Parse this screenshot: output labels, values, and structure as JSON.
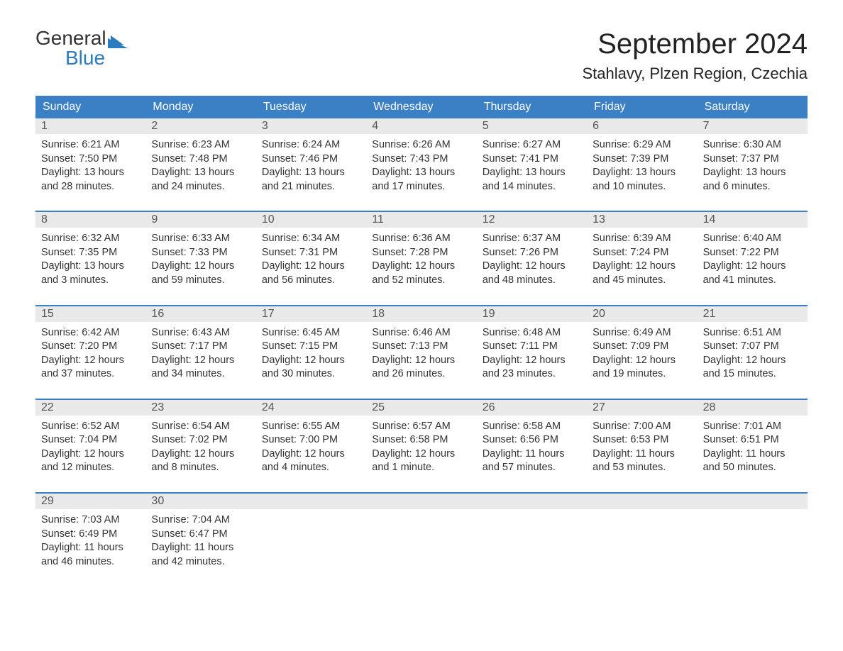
{
  "logo": {
    "text_top": "General",
    "text_bottom": "Blue",
    "text_color": "#333333",
    "accent_color": "#2a7bbf",
    "flag_color": "#2a7bbf"
  },
  "title": "September 2024",
  "location": "Stahlavy, Plzen Region, Czechia",
  "colors": {
    "header_bg": "#3b7fc4",
    "header_text": "#ffffff",
    "daynum_bg": "#e9e9e9",
    "daynum_text": "#555555",
    "body_text": "#333333",
    "week_border": "#3b7fc4",
    "background": "#ffffff"
  },
  "weekdays": [
    "Sunday",
    "Monday",
    "Tuesday",
    "Wednesday",
    "Thursday",
    "Friday",
    "Saturday"
  ],
  "weeks": [
    [
      {
        "day": "1",
        "sunrise": "Sunrise: 6:21 AM",
        "sunset": "Sunset: 7:50 PM",
        "daylight1": "Daylight: 13 hours",
        "daylight2": "and 28 minutes."
      },
      {
        "day": "2",
        "sunrise": "Sunrise: 6:23 AM",
        "sunset": "Sunset: 7:48 PM",
        "daylight1": "Daylight: 13 hours",
        "daylight2": "and 24 minutes."
      },
      {
        "day": "3",
        "sunrise": "Sunrise: 6:24 AM",
        "sunset": "Sunset: 7:46 PM",
        "daylight1": "Daylight: 13 hours",
        "daylight2": "and 21 minutes."
      },
      {
        "day": "4",
        "sunrise": "Sunrise: 6:26 AM",
        "sunset": "Sunset: 7:43 PM",
        "daylight1": "Daylight: 13 hours",
        "daylight2": "and 17 minutes."
      },
      {
        "day": "5",
        "sunrise": "Sunrise: 6:27 AM",
        "sunset": "Sunset: 7:41 PM",
        "daylight1": "Daylight: 13 hours",
        "daylight2": "and 14 minutes."
      },
      {
        "day": "6",
        "sunrise": "Sunrise: 6:29 AM",
        "sunset": "Sunset: 7:39 PM",
        "daylight1": "Daylight: 13 hours",
        "daylight2": "and 10 minutes."
      },
      {
        "day": "7",
        "sunrise": "Sunrise: 6:30 AM",
        "sunset": "Sunset: 7:37 PM",
        "daylight1": "Daylight: 13 hours",
        "daylight2": "and 6 minutes."
      }
    ],
    [
      {
        "day": "8",
        "sunrise": "Sunrise: 6:32 AM",
        "sunset": "Sunset: 7:35 PM",
        "daylight1": "Daylight: 13 hours",
        "daylight2": "and 3 minutes."
      },
      {
        "day": "9",
        "sunrise": "Sunrise: 6:33 AM",
        "sunset": "Sunset: 7:33 PM",
        "daylight1": "Daylight: 12 hours",
        "daylight2": "and 59 minutes."
      },
      {
        "day": "10",
        "sunrise": "Sunrise: 6:34 AM",
        "sunset": "Sunset: 7:31 PM",
        "daylight1": "Daylight: 12 hours",
        "daylight2": "and 56 minutes."
      },
      {
        "day": "11",
        "sunrise": "Sunrise: 6:36 AM",
        "sunset": "Sunset: 7:28 PM",
        "daylight1": "Daylight: 12 hours",
        "daylight2": "and 52 minutes."
      },
      {
        "day": "12",
        "sunrise": "Sunrise: 6:37 AM",
        "sunset": "Sunset: 7:26 PM",
        "daylight1": "Daylight: 12 hours",
        "daylight2": "and 48 minutes."
      },
      {
        "day": "13",
        "sunrise": "Sunrise: 6:39 AM",
        "sunset": "Sunset: 7:24 PM",
        "daylight1": "Daylight: 12 hours",
        "daylight2": "and 45 minutes."
      },
      {
        "day": "14",
        "sunrise": "Sunrise: 6:40 AM",
        "sunset": "Sunset: 7:22 PM",
        "daylight1": "Daylight: 12 hours",
        "daylight2": "and 41 minutes."
      }
    ],
    [
      {
        "day": "15",
        "sunrise": "Sunrise: 6:42 AM",
        "sunset": "Sunset: 7:20 PM",
        "daylight1": "Daylight: 12 hours",
        "daylight2": "and 37 minutes."
      },
      {
        "day": "16",
        "sunrise": "Sunrise: 6:43 AM",
        "sunset": "Sunset: 7:17 PM",
        "daylight1": "Daylight: 12 hours",
        "daylight2": "and 34 minutes."
      },
      {
        "day": "17",
        "sunrise": "Sunrise: 6:45 AM",
        "sunset": "Sunset: 7:15 PM",
        "daylight1": "Daylight: 12 hours",
        "daylight2": "and 30 minutes."
      },
      {
        "day": "18",
        "sunrise": "Sunrise: 6:46 AM",
        "sunset": "Sunset: 7:13 PM",
        "daylight1": "Daylight: 12 hours",
        "daylight2": "and 26 minutes."
      },
      {
        "day": "19",
        "sunrise": "Sunrise: 6:48 AM",
        "sunset": "Sunset: 7:11 PM",
        "daylight1": "Daylight: 12 hours",
        "daylight2": "and 23 minutes."
      },
      {
        "day": "20",
        "sunrise": "Sunrise: 6:49 AM",
        "sunset": "Sunset: 7:09 PM",
        "daylight1": "Daylight: 12 hours",
        "daylight2": "and 19 minutes."
      },
      {
        "day": "21",
        "sunrise": "Sunrise: 6:51 AM",
        "sunset": "Sunset: 7:07 PM",
        "daylight1": "Daylight: 12 hours",
        "daylight2": "and 15 minutes."
      }
    ],
    [
      {
        "day": "22",
        "sunrise": "Sunrise: 6:52 AM",
        "sunset": "Sunset: 7:04 PM",
        "daylight1": "Daylight: 12 hours",
        "daylight2": "and 12 minutes."
      },
      {
        "day": "23",
        "sunrise": "Sunrise: 6:54 AM",
        "sunset": "Sunset: 7:02 PM",
        "daylight1": "Daylight: 12 hours",
        "daylight2": "and 8 minutes."
      },
      {
        "day": "24",
        "sunrise": "Sunrise: 6:55 AM",
        "sunset": "Sunset: 7:00 PM",
        "daylight1": "Daylight: 12 hours",
        "daylight2": "and 4 minutes."
      },
      {
        "day": "25",
        "sunrise": "Sunrise: 6:57 AM",
        "sunset": "Sunset: 6:58 PM",
        "daylight1": "Daylight: 12 hours",
        "daylight2": "and 1 minute."
      },
      {
        "day": "26",
        "sunrise": "Sunrise: 6:58 AM",
        "sunset": "Sunset: 6:56 PM",
        "daylight1": "Daylight: 11 hours",
        "daylight2": "and 57 minutes."
      },
      {
        "day": "27",
        "sunrise": "Sunrise: 7:00 AM",
        "sunset": "Sunset: 6:53 PM",
        "daylight1": "Daylight: 11 hours",
        "daylight2": "and 53 minutes."
      },
      {
        "day": "28",
        "sunrise": "Sunrise: 7:01 AM",
        "sunset": "Sunset: 6:51 PM",
        "daylight1": "Daylight: 11 hours",
        "daylight2": "and 50 minutes."
      }
    ],
    [
      {
        "day": "29",
        "sunrise": "Sunrise: 7:03 AM",
        "sunset": "Sunset: 6:49 PM",
        "daylight1": "Daylight: 11 hours",
        "daylight2": "and 46 minutes."
      },
      {
        "day": "30",
        "sunrise": "Sunrise: 7:04 AM",
        "sunset": "Sunset: 6:47 PM",
        "daylight1": "Daylight: 11 hours",
        "daylight2": "and 42 minutes."
      },
      {
        "empty": true
      },
      {
        "empty": true
      },
      {
        "empty": true
      },
      {
        "empty": true
      },
      {
        "empty": true
      }
    ]
  ]
}
